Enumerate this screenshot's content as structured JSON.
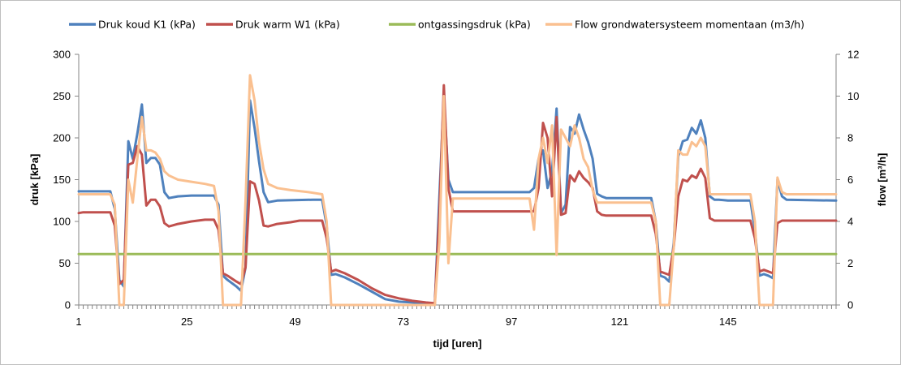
{
  "chart_data": {
    "type": "line",
    "xlabel": "tijd [uren]",
    "ylabel": "druk [kPa]",
    "y2label": "flow [m³/h]",
    "xlim": [
      1,
      169
    ],
    "x_ticks": [
      1,
      25,
      49,
      73,
      97,
      121,
      145
    ],
    "ylim": [
      0,
      300
    ],
    "y_ticks": [
      0,
      50,
      100,
      150,
      200,
      250,
      300
    ],
    "y2lim": [
      0,
      12
    ],
    "y2_ticks": [
      0,
      2,
      4,
      6,
      8,
      10,
      12
    ],
    "grid": false,
    "legend_position": "top",
    "series": [
      {
        "name": "Druk koud K1 (kPa)",
        "axis": "left",
        "color": "#4f81bd",
        "points": [
          [
            1,
            136
          ],
          [
            8,
            136
          ],
          [
            9,
            115
          ],
          [
            10,
            30
          ],
          [
            11,
            22
          ],
          [
            12,
            196
          ],
          [
            13,
            175
          ],
          [
            14,
            205
          ],
          [
            15,
            240
          ],
          [
            16,
            170
          ],
          [
            17,
            176
          ],
          [
            18,
            176
          ],
          [
            19,
            168
          ],
          [
            20,
            135
          ],
          [
            21,
            128
          ],
          [
            23,
            130
          ],
          [
            26,
            131
          ],
          [
            31,
            131
          ],
          [
            32,
            120
          ],
          [
            33,
            35
          ],
          [
            34,
            30
          ],
          [
            36,
            22
          ],
          [
            37,
            17
          ],
          [
            38,
            45
          ],
          [
            39,
            245
          ],
          [
            40,
            212
          ],
          [
            41,
            172
          ],
          [
            42,
            135
          ],
          [
            43,
            123
          ],
          [
            45,
            125
          ],
          [
            53,
            126
          ],
          [
            55,
            126
          ],
          [
            56,
            95
          ],
          [
            57,
            36
          ],
          [
            58,
            37
          ],
          [
            60,
            33
          ],
          [
            63,
            25
          ],
          [
            66,
            16
          ],
          [
            69,
            7
          ],
          [
            72,
            4
          ],
          [
            75,
            3
          ],
          [
            78,
            2
          ],
          [
            80,
            1
          ],
          [
            81,
            130
          ],
          [
            82,
            250
          ],
          [
            83,
            150
          ],
          [
            84,
            135
          ],
          [
            101,
            135
          ],
          [
            102,
            140
          ],
          [
            103,
            175
          ],
          [
            104,
            185
          ],
          [
            105,
            140
          ],
          [
            106,
            160
          ],
          [
            107,
            235
          ],
          [
            108,
            110
          ],
          [
            109,
            120
          ],
          [
            110,
            213
          ],
          [
            111,
            205
          ],
          [
            112,
            228
          ],
          [
            113,
            210
          ],
          [
            114,
            195
          ],
          [
            115,
            175
          ],
          [
            116,
            133
          ],
          [
            117,
            130
          ],
          [
            118,
            128
          ],
          [
            128,
            128
          ],
          [
            129,
            100
          ],
          [
            130,
            35
          ],
          [
            131,
            33
          ],
          [
            132,
            28
          ],
          [
            133,
            75
          ],
          [
            134,
            178
          ],
          [
            135,
            196
          ],
          [
            136,
            198
          ],
          [
            137,
            212
          ],
          [
            138,
            205
          ],
          [
            139,
            221
          ],
          [
            140,
            200
          ],
          [
            141,
            130
          ],
          [
            142,
            126
          ],
          [
            143,
            126
          ],
          [
            145,
            125
          ],
          [
            150,
            125
          ],
          [
            151,
            90
          ],
          [
            152,
            35
          ],
          [
            153,
            37
          ],
          [
            154,
            35
          ],
          [
            155,
            32
          ],
          [
            156,
            150
          ],
          [
            157,
            130
          ],
          [
            158,
            126
          ],
          [
            169,
            125
          ]
        ]
      },
      {
        "name": "Druk warm W1 (kPa)",
        "axis": "left",
        "color": "#c0504d",
        "points": [
          [
            1,
            110
          ],
          [
            2,
            111
          ],
          [
            8,
            111
          ],
          [
            9,
            95
          ],
          [
            10,
            25
          ],
          [
            11,
            30
          ],
          [
            12,
            168
          ],
          [
            13,
            170
          ],
          [
            14,
            190
          ],
          [
            15,
            180
          ],
          [
            16,
            119
          ],
          [
            17,
            126
          ],
          [
            18,
            126
          ],
          [
            19,
            118
          ],
          [
            20,
            98
          ],
          [
            21,
            94
          ],
          [
            23,
            97
          ],
          [
            26,
            100
          ],
          [
            29,
            102
          ],
          [
            31,
            102
          ],
          [
            32,
            90
          ],
          [
            33,
            38
          ],
          [
            34,
            35
          ],
          [
            36,
            28
          ],
          [
            37,
            25
          ],
          [
            38,
            45
          ],
          [
            39,
            148
          ],
          [
            40,
            145
          ],
          [
            41,
            125
          ],
          [
            42,
            95
          ],
          [
            43,
            94
          ],
          [
            45,
            97
          ],
          [
            48,
            99
          ],
          [
            50,
            101
          ],
          [
            55,
            101
          ],
          [
            56,
            80
          ],
          [
            57,
            40
          ],
          [
            58,
            42
          ],
          [
            60,
            38
          ],
          [
            63,
            30
          ],
          [
            66,
            20
          ],
          [
            69,
            12
          ],
          [
            72,
            8
          ],
          [
            75,
            5
          ],
          [
            78,
            3
          ],
          [
            80,
            2
          ],
          [
            81,
            110
          ],
          [
            82,
            263
          ],
          [
            83,
            140
          ],
          [
            84,
            112
          ],
          [
            102,
            112
          ],
          [
            103,
            140
          ],
          [
            104,
            218
          ],
          [
            105,
            200
          ],
          [
            106,
            130
          ],
          [
            107,
            225
          ],
          [
            108,
            108
          ],
          [
            109,
            110
          ],
          [
            110,
            155
          ],
          [
            111,
            148
          ],
          [
            112,
            160
          ],
          [
            113,
            152
          ],
          [
            114,
            147
          ],
          [
            115,
            140
          ],
          [
            116,
            112
          ],
          [
            117,
            108
          ],
          [
            118,
            107
          ],
          [
            128,
            107
          ],
          [
            129,
            85
          ],
          [
            130,
            40
          ],
          [
            131,
            38
          ],
          [
            132,
            36
          ],
          [
            133,
            70
          ],
          [
            134,
            130
          ],
          [
            135,
            150
          ],
          [
            136,
            148
          ],
          [
            137,
            155
          ],
          [
            138,
            152
          ],
          [
            139,
            163
          ],
          [
            140,
            152
          ],
          [
            141,
            104
          ],
          [
            142,
            101
          ],
          [
            150,
            101
          ],
          [
            151,
            80
          ],
          [
            152,
            40
          ],
          [
            153,
            42
          ],
          [
            154,
            40
          ],
          [
            155,
            38
          ],
          [
            156,
            98
          ],
          [
            157,
            101
          ],
          [
            169,
            101
          ]
        ]
      },
      {
        "name": "ontgassingsdruk (kPa)",
        "axis": "left",
        "color": "#9bbb59",
        "points": [
          [
            1,
            61
          ],
          [
            169,
            61
          ]
        ]
      },
      {
        "name": "Flow grondwatersysteem momentaan  (m3/h)",
        "axis": "right",
        "color": "#fac090",
        "points": [
          [
            1,
            5.3
          ],
          [
            8,
            5.3
          ],
          [
            9,
            4.8
          ],
          [
            10,
            0
          ],
          [
            11,
            0
          ],
          [
            12,
            6.0
          ],
          [
            13,
            4.9
          ],
          [
            14,
            7.0
          ],
          [
            15,
            9.0
          ],
          [
            16,
            7.4
          ],
          [
            17,
            7.4
          ],
          [
            18,
            7.3
          ],
          [
            19,
            7.0
          ],
          [
            20,
            6.4
          ],
          [
            21,
            6.2
          ],
          [
            23,
            6.0
          ],
          [
            26,
            5.9
          ],
          [
            29,
            5.8
          ],
          [
            31,
            5.7
          ],
          [
            32,
            4.5
          ],
          [
            33,
            0
          ],
          [
            37,
            0
          ],
          [
            38,
            5.0
          ],
          [
            39,
            11.0
          ],
          [
            40,
            9.8
          ],
          [
            41,
            7.8
          ],
          [
            42,
            6.5
          ],
          [
            43,
            5.8
          ],
          [
            45,
            5.6
          ],
          [
            48,
            5.5
          ],
          [
            52,
            5.4
          ],
          [
            55,
            5.3
          ],
          [
            56,
            4.0
          ],
          [
            57,
            0
          ],
          [
            80,
            0
          ],
          [
            81,
            3.0
          ],
          [
            82,
            10.0
          ],
          [
            83,
            2.0
          ],
          [
            84,
            5.1
          ],
          [
            101,
            5.1
          ],
          [
            102,
            3.6
          ],
          [
            103,
            7.0
          ],
          [
            104,
            8.0
          ],
          [
            105,
            6.8
          ],
          [
            106,
            8.6
          ],
          [
            107,
            2.4
          ],
          [
            108,
            8.4
          ],
          [
            109,
            8.0
          ],
          [
            110,
            7.6
          ],
          [
            111,
            8.6
          ],
          [
            112,
            8.0
          ],
          [
            113,
            7.0
          ],
          [
            114,
            6.6
          ],
          [
            115,
            5.5
          ],
          [
            116,
            4.9
          ],
          [
            128,
            4.9
          ],
          [
            129,
            4.0
          ],
          [
            130,
            0
          ],
          [
            132,
            0
          ],
          [
            133,
            2.8
          ],
          [
            134,
            7.4
          ],
          [
            135,
            7.2
          ],
          [
            136,
            7.2
          ],
          [
            137,
            7.8
          ],
          [
            138,
            7.6
          ],
          [
            139,
            8.0
          ],
          [
            140,
            7.6
          ],
          [
            141,
            5.3
          ],
          [
            150,
            5.3
          ],
          [
            151,
            4.0
          ],
          [
            152,
            0
          ],
          [
            155,
            0
          ],
          [
            156,
            6.1
          ],
          [
            157,
            5.4
          ],
          [
            158,
            5.3
          ],
          [
            169,
            5.3
          ]
        ]
      }
    ]
  }
}
